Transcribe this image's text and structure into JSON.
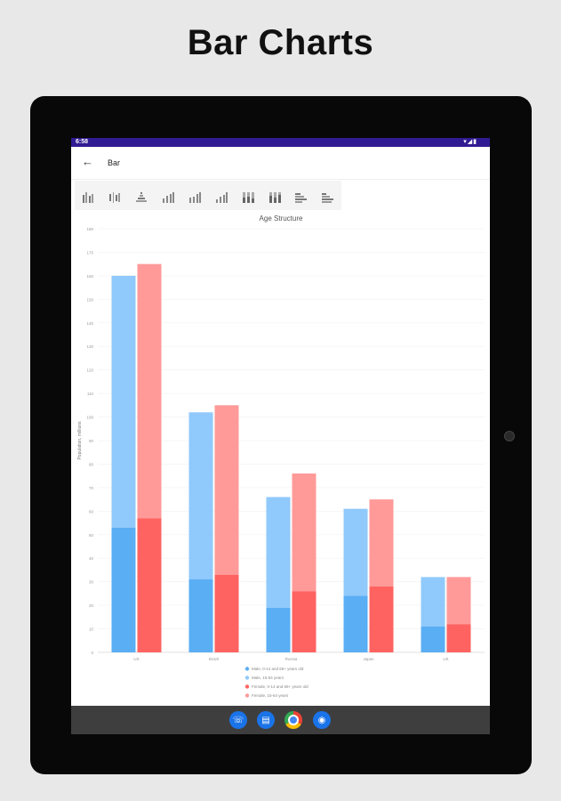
{
  "headline": "Bar Charts",
  "status": {
    "time": "6:58",
    "icons": "▾◢▮"
  },
  "appbar": {
    "back_icon": "arrow-left-icon",
    "title": "Bar"
  },
  "tabs": [
    "bar-grouped-icon",
    "bar-grouped-horizontal-icon",
    "pyramid-icon",
    "bar-vertical-icon",
    "bar-vertical-2-icon",
    "bar-vertical-3-icon",
    "bar-stacked-icon",
    "bar-stacked-2-icon",
    "bar-horizontal-icon",
    "bar-horizontal-2-icon"
  ],
  "colors": {
    "male_inner": "#5aaef4",
    "male_outer": "#90c9fb",
    "female_inner": "#ff6361",
    "female_outer": "#ff9a99",
    "statusbar": "#311b92"
  },
  "chart_data": {
    "type": "bar",
    "title": "Age Structure",
    "ylabel": "Population, millions",
    "xlabel": "",
    "ylim": [
      0,
      180
    ],
    "yticks": [
      0,
      10,
      20,
      30,
      40,
      50,
      60,
      70,
      80,
      90,
      100,
      110,
      120,
      130,
      140,
      150,
      160,
      170,
      180
    ],
    "categories": [
      "US",
      "Brazil",
      "Russia",
      "Japan",
      "UK"
    ],
    "stacks": [
      {
        "name": "Male",
        "inner": [
          53,
          31,
          19,
          24,
          11
        ],
        "total": [
          160,
          102,
          66,
          61,
          32
        ]
      },
      {
        "name": "Female",
        "inner": [
          57,
          33,
          26,
          28,
          12
        ],
        "total": [
          165,
          105,
          76,
          65,
          32
        ]
      }
    ],
    "legend": [
      "Male, 0-14 and 65+ years old",
      "Male, 15-64 years",
      "Female, 0-14 and 65+ years old",
      "Female, 15-64 years"
    ],
    "legend_position": "bottom-center",
    "grid": true
  },
  "navbar": {
    "apps": [
      "phone-icon",
      "messages-icon",
      "chrome-icon",
      "camera-icon"
    ]
  }
}
